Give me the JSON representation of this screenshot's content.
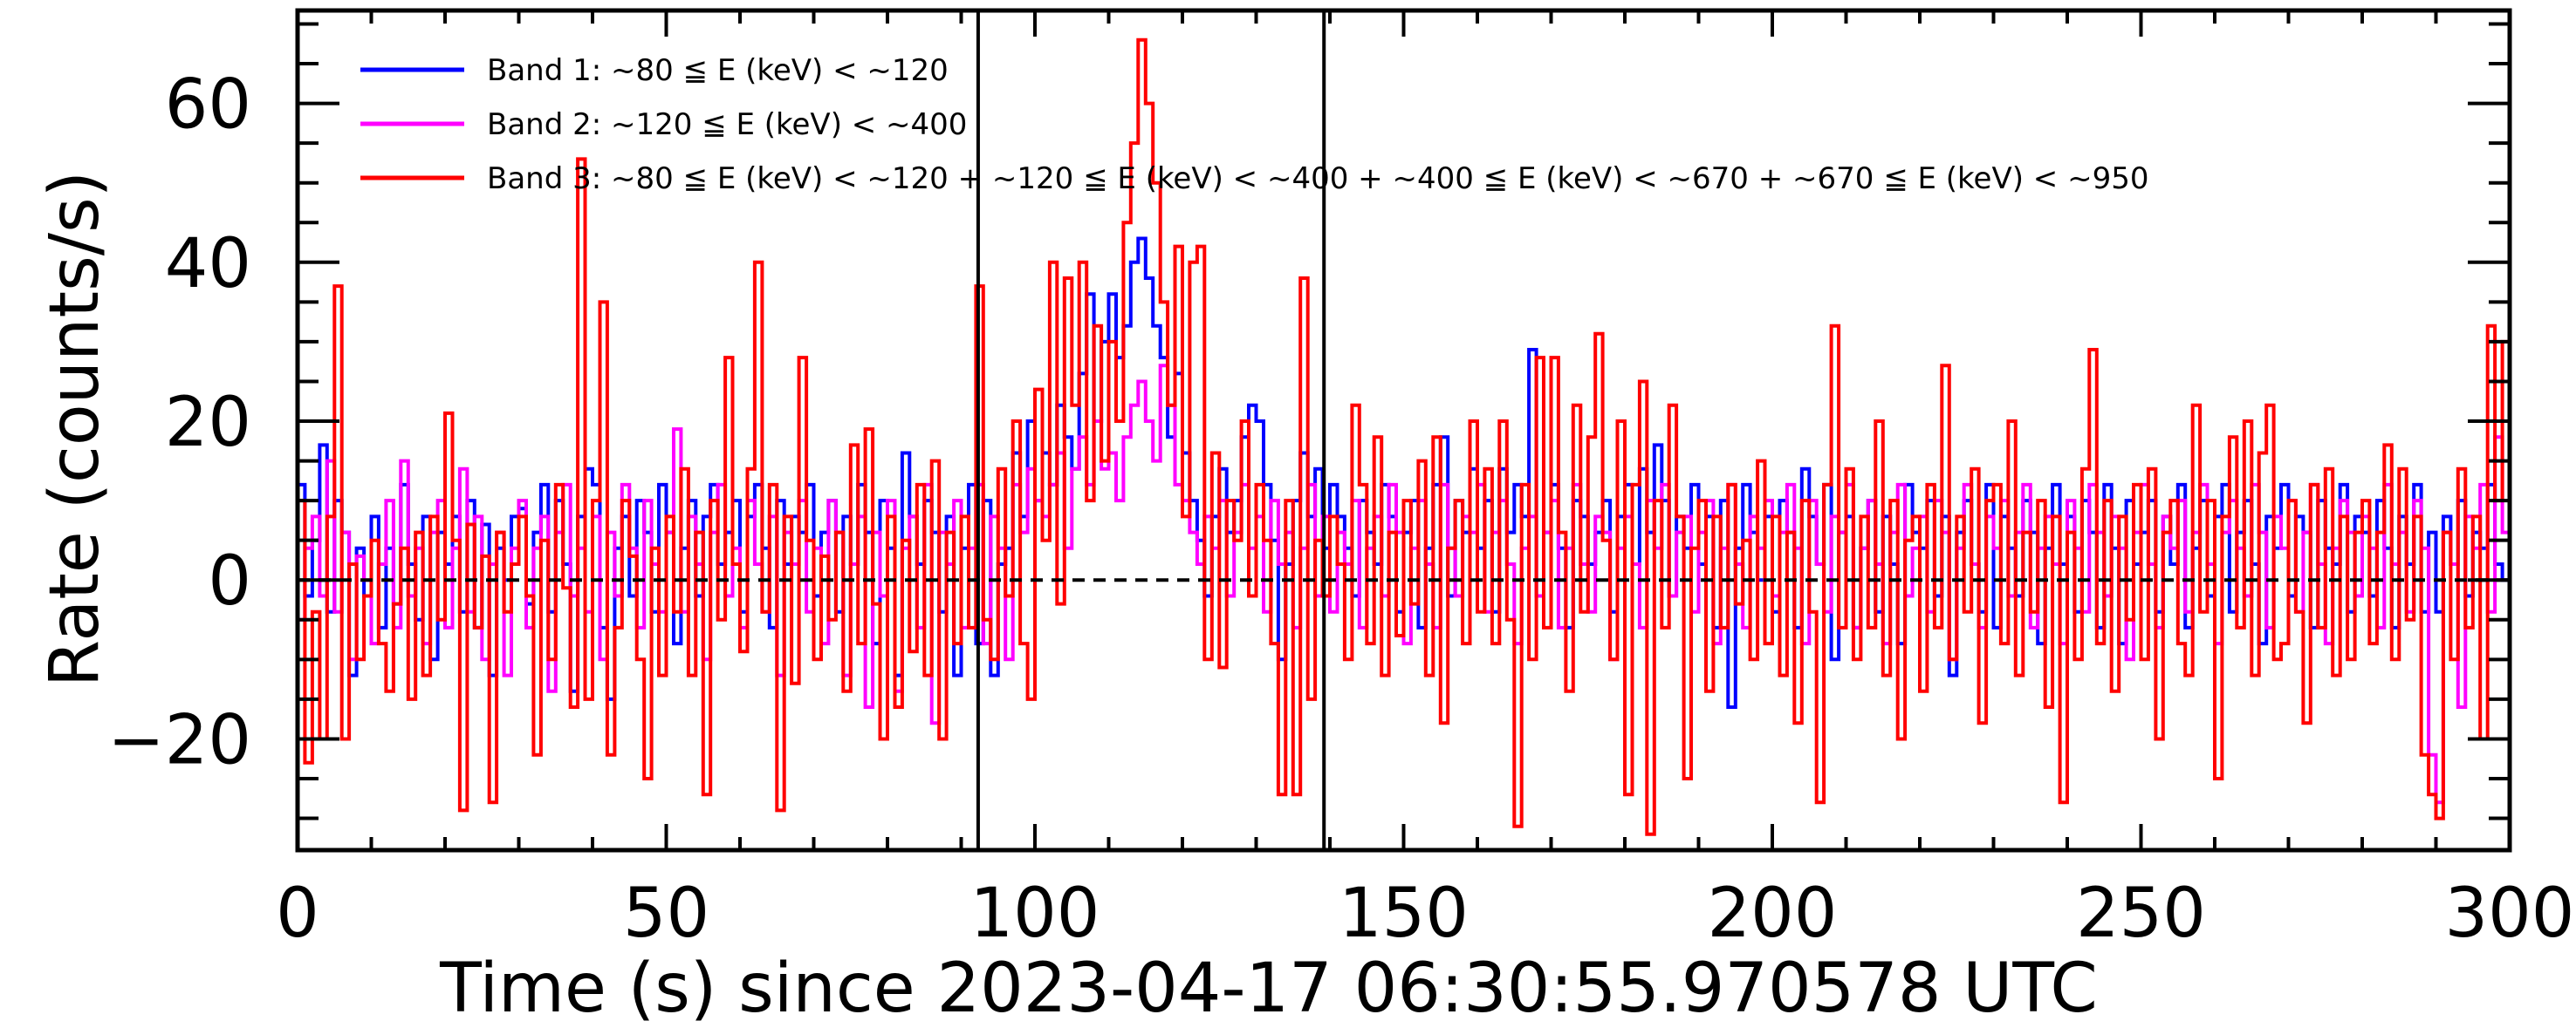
{
  "chart_data": {
    "type": "line",
    "style": "step",
    "title": "",
    "xlabel": "Time (s) since 2023-04-17 06:30:55.970578 UTC",
    "ylabel": "Rate (counts/s)",
    "xlim": [
      0,
      300
    ],
    "ylim": [
      -34,
      71.7
    ],
    "x_major_ticks": [
      0,
      50,
      100,
      150,
      200,
      250,
      300
    ],
    "x_tick_labels": [
      "0",
      "50",
      "100",
      "150",
      "200",
      "250",
      "300"
    ],
    "x_minor_step": 10,
    "y_major_ticks": [
      -20,
      0,
      20,
      40,
      60
    ],
    "y_tick_labels": [
      "−20",
      "0",
      "20",
      "40",
      "60"
    ],
    "y_minor_step": 5,
    "grid": false,
    "legend_position": "top-left",
    "bin_width": 1,
    "x_start": 0,
    "reference_lines": {
      "horizontal_dashed_y": 0,
      "vertical_x": [
        92.3,
        139.2
      ]
    },
    "series": [
      {
        "name": "Band 1: ~80 ≦ E (keV) < ~120",
        "color": "#0000ff",
        "values": [
          12,
          -2,
          5,
          17,
          -4,
          10,
          6,
          -12,
          4,
          -2,
          8,
          -6,
          4,
          -3,
          12,
          2,
          -5,
          8,
          -10,
          6,
          2,
          8,
          -4,
          10,
          -6,
          7,
          -12,
          4,
          0,
          8,
          9,
          -3,
          6,
          12,
          -4,
          10,
          2,
          -14,
          8,
          14,
          12,
          -6,
          -15,
          4,
          8,
          -2,
          10,
          6,
          -4,
          12,
          6,
          -8,
          4,
          10,
          -2,
          8,
          12,
          2,
          6,
          10,
          -4,
          8,
          12,
          4,
          -6,
          10,
          2,
          8,
          6,
          12,
          -2,
          6,
          10,
          -4,
          8,
          2,
          12,
          6,
          -8,
          10,
          4,
          -12,
          16,
          8,
          2,
          10,
          6,
          -4,
          8,
          -12,
          4,
          12,
          -8,
          10,
          -12,
          2,
          4,
          16,
          8,
          20,
          10,
          16,
          12,
          22,
          18,
          14,
          26,
          36,
          20,
          30,
          36,
          28,
          32,
          40,
          43,
          38,
          32,
          28,
          18,
          26,
          16,
          10,
          5,
          -2,
          8,
          14,
          6,
          10,
          18,
          22,
          20,
          12,
          5,
          -10,
          2,
          10,
          16,
          8,
          14,
          4,
          12,
          8,
          4,
          -2,
          10,
          6,
          2,
          12,
          8,
          -4,
          6,
          10,
          -6,
          4,
          12,
          18,
          -2,
          10,
          6,
          14,
          4,
          10,
          -4,
          14,
          6,
          12,
          8,
          29,
          -2,
          6,
          12,
          4,
          -6,
          10,
          8,
          2,
          6,
          10,
          -4,
          8,
          12,
          2,
          14,
          6,
          17,
          10,
          -2,
          8,
          4,
          12,
          2,
          8,
          -6,
          10,
          -16,
          4,
          12,
          6,
          0,
          8,
          -4,
          10,
          6,
          -6,
          14,
          8,
          2,
          12,
          -10,
          6,
          8,
          -6,
          4,
          10,
          -4,
          8,
          2,
          -8,
          12,
          6,
          4,
          10,
          -2,
          8,
          -12,
          6,
          10,
          2,
          -4,
          12,
          -6,
          8,
          4,
          -2,
          10,
          6,
          -8,
          4,
          12,
          2,
          8,
          -4,
          10,
          6,
          -6,
          12,
          4,
          -8,
          10,
          2,
          6,
          10,
          -4,
          8,
          2,
          12,
          -6,
          4,
          10,
          -2,
          8,
          12,
          -4,
          6,
          10,
          2,
          -8,
          8,
          4,
          12,
          -2,
          8,
          6,
          -6,
          10,
          4,
          2,
          12,
          -4,
          8,
          6,
          -2,
          10,
          4,
          -6,
          8,
          2,
          12,
          -4,
          6,
          -4,
          8,
          2,
          10,
          -2,
          6,
          4,
          12,
          2,
          0
        ]
      },
      {
        "name": "Band 2: ~120 ≦ E (keV) < ~400",
        "color": "#ff00ff",
        "values": [
          -5,
          4,
          8,
          -2,
          15,
          -4,
          6,
          -10,
          3,
          0,
          -8,
          2,
          10,
          -6,
          15,
          -2,
          4,
          -8,
          6,
          10,
          -6,
          4,
          14,
          -4,
          8,
          -10,
          2,
          6,
          -12,
          4,
          10,
          -6,
          4,
          8,
          -14,
          6,
          12,
          -2,
          4,
          -4,
          8,
          -10,
          6,
          -2,
          12,
          4,
          -6,
          10,
          2,
          -4,
          6,
          19,
          -4,
          8,
          2,
          -10,
          6,
          12,
          -2,
          4,
          -6,
          10,
          2,
          -4,
          8,
          -12,
          6,
          2,
          10,
          -4,
          4,
          -8,
          10,
          6,
          -12,
          2,
          8,
          -16,
          6,
          -2,
          10,
          -14,
          4,
          8,
          -6,
          12,
          -18,
          6,
          2,
          10,
          -6,
          4,
          12,
          -8,
          8,
          4,
          -10,
          12,
          6,
          14,
          10,
          8,
          12,
          16,
          4,
          14,
          18,
          12,
          20,
          14,
          16,
          10,
          18,
          22,
          25,
          20,
          15,
          27,
          22,
          12,
          10,
          6,
          2,
          8,
          4,
          10,
          -2,
          6,
          12,
          4,
          8,
          -4,
          10,
          2,
          6,
          -6,
          4,
          12,
          -2,
          8,
          -4,
          6,
          2,
          10,
          -6,
          4,
          8,
          -2,
          12,
          6,
          -8,
          4,
          10,
          2,
          -6,
          12,
          4,
          -2,
          8,
          6,
          12,
          -4,
          6,
          10,
          2,
          -8,
          4,
          8,
          -2,
          6,
          10,
          -6,
          4,
          12,
          2,
          -4,
          8,
          6,
          -10,
          4,
          8,
          2,
          -6,
          10,
          4,
          12,
          -2,
          6,
          8,
          -4,
          6,
          10,
          -8,
          4,
          12,
          2,
          -6,
          8,
          4,
          10,
          -2,
          6,
          12,
          4,
          -8,
          10,
          2,
          -4,
          8,
          6,
          12,
          -6,
          4,
          10,
          2,
          -8,
          6,
          12,
          -2,
          4,
          8,
          -4,
          10,
          6,
          -10,
          4,
          12,
          2,
          -6,
          8,
          4,
          10,
          -2,
          6,
          12,
          -6,
          4,
          8,
          2,
          -8,
          10,
          4,
          -4,
          12,
          6,
          -2,
          8,
          4,
          -10,
          6,
          12,
          2,
          -6,
          8,
          4,
          10,
          -4,
          6,
          12,
          2,
          -8,
          6,
          10,
          4,
          -2,
          12,
          6,
          -6,
          8,
          4,
          10,
          -4,
          6,
          12,
          2,
          -8,
          4,
          10,
          6,
          -2,
          8,
          4,
          -6,
          12,
          2,
          6,
          -4,
          10,
          4,
          -22,
          -28,
          6,
          2,
          -16,
          8,
          4,
          12,
          -4,
          18,
          6
        ]
      },
      {
        "name": "Band 3: ~80 ≦ E (keV) < ~120 + ~120 ≦ E (keV) < ~400 + ~400 ≦ E (keV) < ~670 + ~670 ≦ E (keV) < ~950",
        "color": "#ff0000",
        "values": [
          10,
          -23,
          -4,
          -20,
          8,
          37,
          -20,
          2,
          -10,
          -2,
          5,
          -8,
          -14,
          -3,
          4,
          -15,
          6,
          -12,
          8,
          -5,
          21,
          5,
          -29,
          7,
          -6,
          3,
          -28,
          6,
          -4,
          2,
          8,
          -2,
          -22,
          5,
          -10,
          12,
          -1,
          -16,
          53,
          -15,
          10,
          35,
          -22,
          -6,
          10,
          3,
          -10,
          -25,
          4,
          -12,
          8,
          -4,
          14,
          -12,
          6,
          -27,
          10,
          -5,
          28,
          2,
          -9,
          14,
          40,
          -4,
          12,
          -29,
          8,
          -13,
          28,
          5,
          -10,
          3,
          -5,
          6,
          -14,
          17,
          -8,
          19,
          -3,
          -20,
          8,
          -16,
          5,
          -9,
          12,
          -12,
          15,
          -20,
          6,
          -8,
          8,
          -6,
          37,
          -5,
          -10,
          14,
          -2,
          20,
          -8,
          -15,
          24,
          5,
          40,
          -3,
          38,
          22,
          40,
          10,
          32,
          15,
          30,
          20,
          45,
          55,
          68,
          60,
          50,
          35,
          22,
          42,
          8,
          40,
          42,
          -10,
          16,
          -11,
          10,
          5,
          20,
          -2,
          12,
          5,
          -8,
          -27,
          10,
          -27,
          38,
          -15,
          5,
          -2,
          8,
          2,
          -10,
          22,
          12,
          -8,
          18,
          -12,
          6,
          -7,
          10,
          -3,
          15,
          -12,
          18,
          -18,
          4,
          10,
          -8,
          20,
          -4,
          14,
          -8,
          20,
          -5,
          -31,
          12,
          -10,
          28,
          -6,
          28,
          6,
          -14,
          22,
          -4,
          18,
          31,
          5,
          -10,
          20,
          -27,
          12,
          25,
          -32,
          10,
          -6,
          22,
          8,
          -25,
          4,
          10,
          -14,
          8,
          -6,
          12,
          -3,
          5,
          -10,
          15,
          -8,
          8,
          -12,
          6,
          -18,
          10,
          -4,
          -28,
          12,
          32,
          -6,
          14,
          -10,
          8,
          -6,
          20,
          -12,
          10,
          -20,
          5,
          8,
          -14,
          12,
          -6,
          27,
          -10,
          8,
          -4,
          14,
          -18,
          10,
          12,
          -8,
          20,
          -12,
          6,
          -4,
          10,
          -16,
          8,
          -28,
          6,
          -10,
          14,
          29,
          -8,
          10,
          -14,
          8,
          -5,
          12,
          -10,
          14,
          -20,
          6,
          10,
          -8,
          -12,
          22,
          -4,
          10,
          -25,
          8,
          18,
          -6,
          20,
          -12,
          16,
          22,
          -10,
          -8,
          10,
          -4,
          -18,
          12,
          -6,
          14,
          -12,
          8,
          -10,
          6,
          10,
          -8,
          6,
          17,
          -10,
          14,
          -5,
          8,
          -22,
          -27,
          -30,
          6,
          -10,
          14,
          -6,
          8,
          -20,
          32,
          10,
          30
        ]
      }
    ]
  }
}
